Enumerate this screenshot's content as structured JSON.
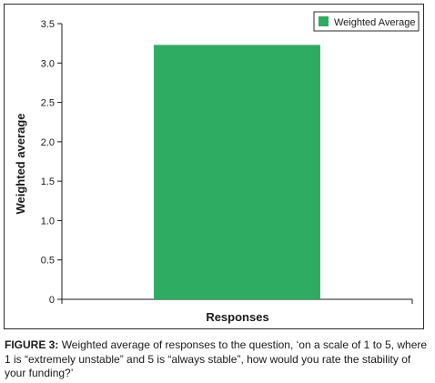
{
  "chart_data": {
    "type": "bar",
    "categories": [
      ""
    ],
    "series": [
      {
        "name": "Weighted Average",
        "values": [
          3.23
        ],
        "color": "#2eac61"
      }
    ],
    "xlabel": "Responses",
    "ylabel": "Weighted average",
    "ylim": [
      0,
      3.5
    ],
    "yticks": [
      "0",
      "0.5",
      "1.0",
      "1.5",
      "2.0",
      "2.5",
      "3.0",
      "3.5"
    ],
    "legend": "top-right",
    "grid": false
  },
  "caption": {
    "label": "FIGURE 3:",
    "text": "Weighted average of responses to the question, ‘on a scale of 1 to 5, where 1 is “extremely unstable” and 5 is “always stable”, how would you rate the stability of your funding?’"
  }
}
